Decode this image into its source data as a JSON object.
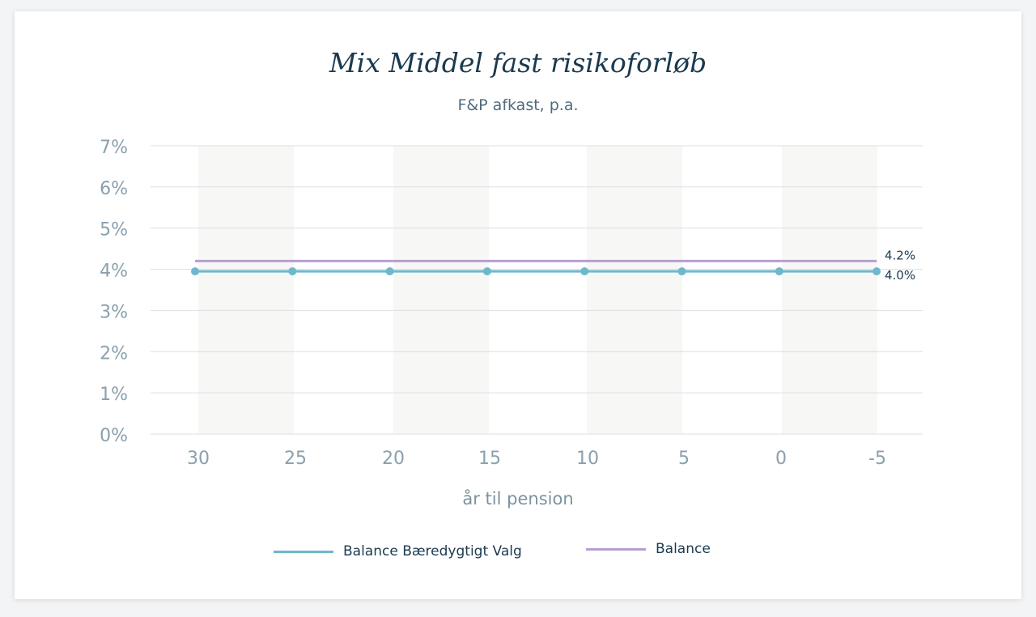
{
  "chart_data": {
    "type": "line",
    "title": "Mix Middel fast risikoforløb",
    "subtitle": "F&P afkast, p.a.",
    "xlabel": "år til pension",
    "ylabel": "",
    "categories": [
      "30",
      "25",
      "20",
      "15",
      "10",
      "5",
      "0",
      "-5"
    ],
    "x": [
      30,
      25,
      20,
      15,
      10,
      5,
      0,
      -5
    ],
    "ylim": [
      0,
      7
    ],
    "yticks": [
      "0%",
      "1%",
      "2%",
      "3%",
      "4%",
      "5%",
      "6%",
      "7%"
    ],
    "grid": true,
    "legend_position": "bottom",
    "series": [
      {
        "name": "Balance Bæredygtigt Valg",
        "values": [
          3.95,
          3.95,
          3.95,
          3.95,
          3.95,
          3.95,
          3.95,
          3.95
        ],
        "end_label": "4.0%",
        "color": "#6fb8cc",
        "markers": true
      },
      {
        "name": "Balance",
        "values": [
          4.2,
          4.2,
          4.2,
          4.2,
          4.2,
          4.2,
          4.2,
          4.2
        ],
        "end_label": "4.2%",
        "color": "#b79fd0",
        "markers": false
      }
    ],
    "colors": {
      "grid": "#dcdfe1",
      "band": "#f7f7f5",
      "tick_text": "#8aa0ad",
      "axis_label": "#7d929e",
      "title": "#1b3a4f"
    }
  }
}
